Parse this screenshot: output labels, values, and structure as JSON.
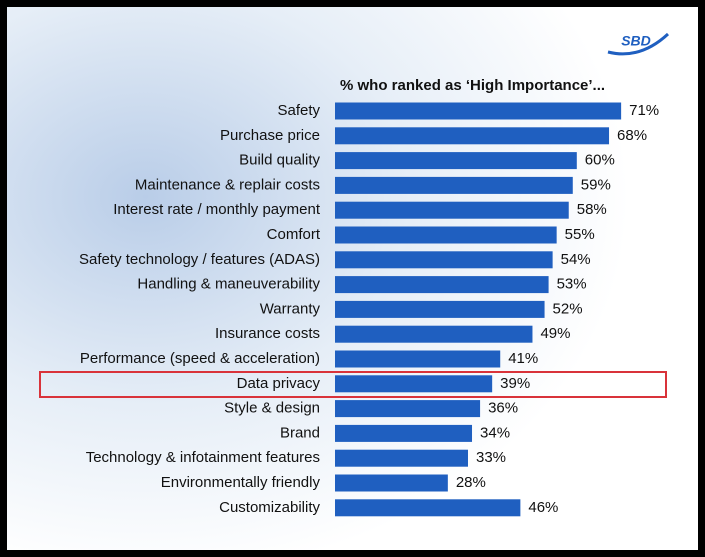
{
  "chart_data": {
    "type": "bar",
    "orientation": "horizontal",
    "logo": "SBD",
    "title": "% who ranked as ‘High Importance’...",
    "categories": [
      "Safety",
      "Purchase price",
      "Build quality",
      "Maintenance & replair costs",
      "Interest rate / monthly payment",
      "Comfort",
      "Safety technology / features (ADAS)",
      "Handling & maneuverability",
      "Warranty",
      "Insurance costs",
      "Performance (speed & acceleration)",
      "Data privacy",
      "Style & design",
      "Brand",
      "Technology & infotainment features",
      "Environmentally friendly",
      "Customizability"
    ],
    "values": [
      71,
      68,
      60,
      59,
      58,
      55,
      54,
      53,
      52,
      49,
      41,
      39,
      36,
      34,
      33,
      28,
      46
    ],
    "value_labels": [
      "71%",
      "68%",
      "60%",
      "59%",
      "58%",
      "55%",
      "54%",
      "53%",
      "52%",
      "49%",
      "41%",
      "39%",
      "36%",
      "34%",
      "33%",
      "28%",
      "46%"
    ],
    "color": "#1f5fc0"
  }
}
